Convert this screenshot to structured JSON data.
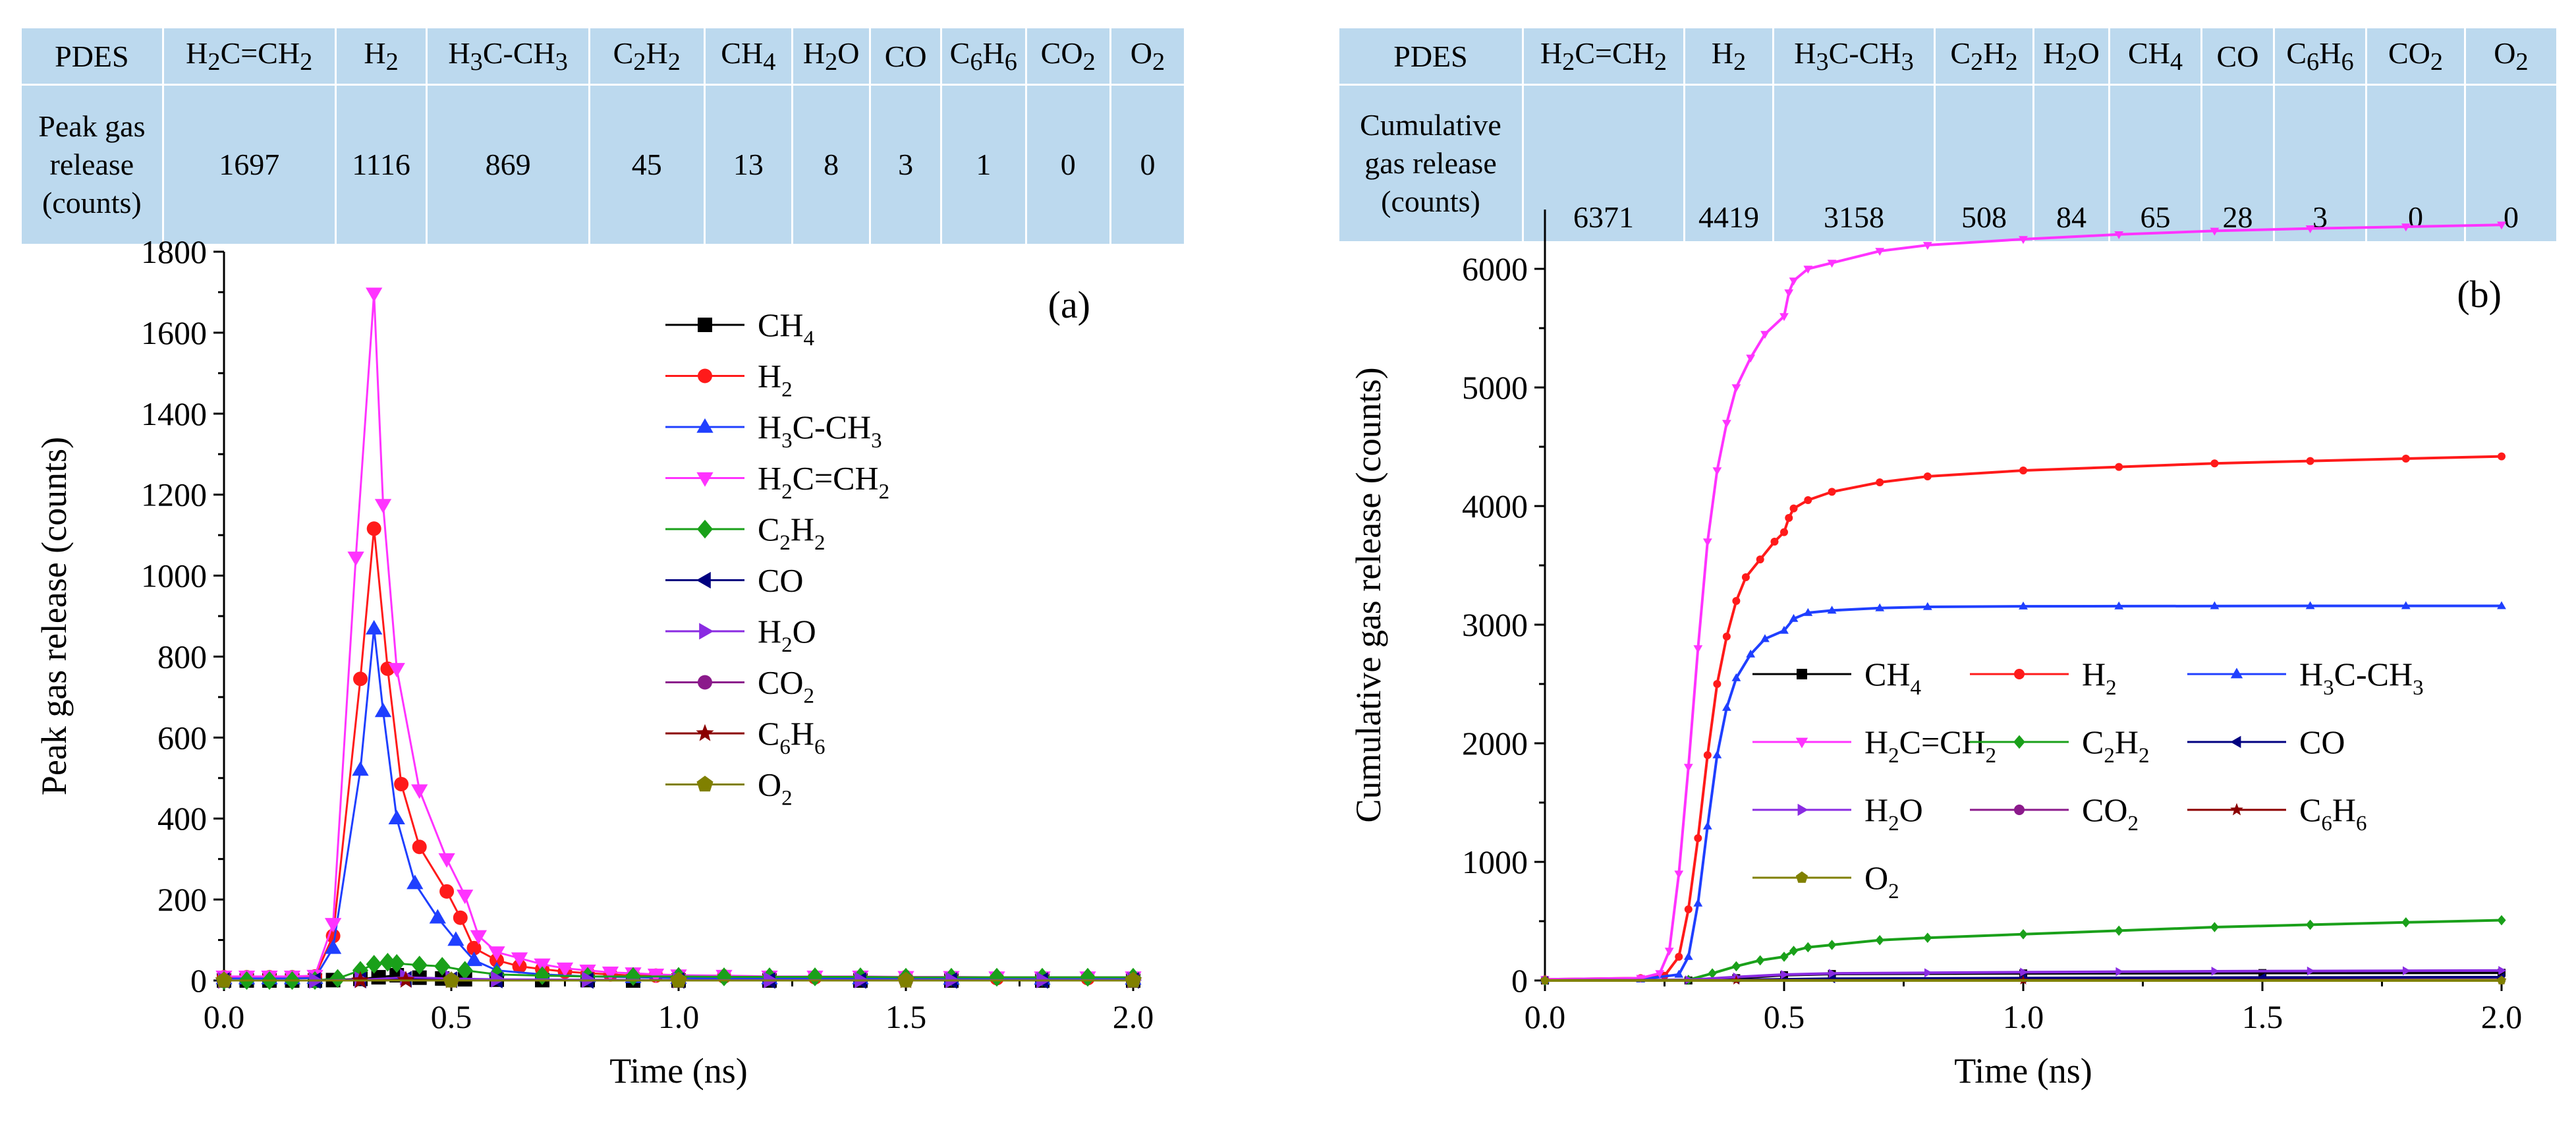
{
  "panel_a": {
    "table": {
      "header": [
        "PDES",
        "H<sub>2</sub>C=CH<sub>2</sub>",
        "H<sub>2</sub>",
        "H<sub>3</sub>C-CH<sub>3</sub>",
        "C<sub>2</sub>H<sub>2</sub>",
        "CH<sub>4</sub>",
        "H<sub>2</sub>O",
        "CO",
        "C<sub>6</sub>H<sub>6</sub>",
        "CO<sub>2</sub>",
        "O<sub>2</sub>"
      ],
      "row_label": "Peak gas<br>release<br>(counts)",
      "values": [
        "1697",
        "1116",
        "869",
        "45",
        "13",
        "8",
        "3",
        "1",
        "0",
        "0"
      ]
    }
  },
  "panel_b": {
    "table": {
      "header": [
        "PDES",
        "H<sub>2</sub>C=CH<sub>2</sub>",
        "H<sub>2</sub>",
        "H<sub>3</sub>C-CH<sub>3</sub>",
        "C<sub>2</sub>H<sub>2</sub>",
        "H<sub>2</sub>O",
        "CH<sub>4</sub>",
        "CO",
        "C<sub>6</sub>H<sub>6</sub>",
        "CO<sub>2</sub>",
        "O<sub>2</sub>"
      ],
      "row_label": "Cumulative<br>gas release<br>(counts)",
      "values": [
        "6371",
        "4419",
        "3158",
        "508",
        "84",
        "65",
        "28",
        "3",
        "0",
        "0"
      ]
    }
  },
  "chart_data": [
    {
      "type": "line",
      "panel_label": "(a)",
      "title": "",
      "xlabel": "Time (ns)",
      "ylabel": "Peak gas release (counts)",
      "xlim": [
        0,
        2.0
      ],
      "ylim": [
        0,
        1800
      ],
      "xticks": [
        "0.0",
        "0.5",
        "1.0",
        "1.5",
        "2.0"
      ],
      "yticks": [
        "0",
        "200",
        "400",
        "600",
        "800",
        "1000",
        "1200",
        "1400",
        "1600",
        "1800"
      ],
      "legend_position": "top-right",
      "series": [
        {
          "name": "CH<sub>4</sub>",
          "color": "#000000",
          "marker": "square",
          "x": [
            0.0,
            0.05,
            0.1,
            0.15,
            0.2,
            0.24,
            0.3,
            0.34,
            0.38,
            0.43,
            0.48,
            0.53,
            0.6,
            0.7,
            0.8,
            0.9,
            1.0,
            1.2,
            1.4,
            1.6,
            1.8,
            2.0
          ],
          "y": [
            0,
            0,
            0,
            0,
            0,
            1,
            4,
            8,
            13,
            7,
            5,
            3,
            2,
            1,
            1,
            0,
            0,
            0,
            0,
            0,
            0,
            0
          ]
        },
        {
          "name": "H<sub>2</sub>",
          "color": "#ff1a1a",
          "marker": "circle",
          "x": [
            0.0,
            0.05,
            0.1,
            0.15,
            0.2,
            0.24,
            0.3,
            0.33,
            0.36,
            0.39,
            0.43,
            0.49,
            0.52,
            0.55,
            0.6,
            0.65,
            0.7,
            0.75,
            0.8,
            0.85,
            0.9,
            0.95,
            1.0,
            1.1,
            1.2,
            1.3,
            1.4,
            1.5,
            1.6,
            1.7,
            1.8,
            1.9,
            2.0
          ],
          "y": [
            8,
            8,
            8,
            8,
            10,
            110,
            745,
            1116,
            770,
            485,
            330,
            220,
            155,
            80,
            50,
            35,
            28,
            22,
            18,
            15,
            12,
            12,
            10,
            10,
            8,
            8,
            8,
            8,
            6,
            6,
            6,
            6,
            6
          ]
        },
        {
          "name": "H<sub>3</sub>C-CH<sub>3</sub>",
          "color": "#1f3fff",
          "marker": "triangle-up",
          "x": [
            0.0,
            0.05,
            0.1,
            0.15,
            0.2,
            0.24,
            0.3,
            0.33,
            0.35,
            0.38,
            0.42,
            0.47,
            0.51,
            0.55,
            0.6,
            0.7,
            0.8,
            0.9,
            1.0,
            1.2,
            1.4,
            1.6,
            1.8,
            2.0
          ],
          "y": [
            5,
            5,
            5,
            5,
            6,
            80,
            520,
            869,
            665,
            400,
            240,
            155,
            100,
            50,
            25,
            15,
            10,
            8,
            6,
            5,
            5,
            4,
            4,
            4
          ]
        },
        {
          "name": "H<sub>2</sub>C=CH<sub>2</sub>",
          "color": "#ff33ff",
          "marker": "triangle-down",
          "x": [
            0.0,
            0.05,
            0.1,
            0.15,
            0.2,
            0.24,
            0.29,
            0.33,
            0.35,
            0.38,
            0.43,
            0.49,
            0.53,
            0.56,
            0.6,
            0.65,
            0.7,
            0.75,
            0.8,
            0.85,
            0.9,
            0.95,
            1.0,
            1.1,
            1.2,
            1.3,
            1.4,
            1.5,
            1.6,
            1.7,
            1.8,
            1.9,
            2.0
          ],
          "y": [
            10,
            10,
            10,
            10,
            12,
            140,
            1045,
            1697,
            1175,
            770,
            470,
            300,
            210,
            110,
            70,
            55,
            40,
            30,
            25,
            20,
            18,
            15,
            13,
            12,
            10,
            10,
            10,
            9,
            9,
            8,
            8,
            8,
            8
          ]
        },
        {
          "name": "C<sub>2</sub>H<sub>2</sub>",
          "color": "#1aa01a",
          "marker": "diamond",
          "x": [
            0.0,
            0.05,
            0.1,
            0.15,
            0.2,
            0.25,
            0.3,
            0.33,
            0.36,
            0.38,
            0.43,
            0.48,
            0.53,
            0.6,
            0.7,
            0.8,
            0.9,
            1.0,
            1.1,
            1.2,
            1.3,
            1.4,
            1.5,
            1.6,
            1.7,
            1.8,
            1.9,
            2.0
          ],
          "y": [
            0,
            0,
            0,
            0,
            0,
            5,
            25,
            40,
            45,
            42,
            38,
            35,
            25,
            15,
            12,
            10,
            10,
            10,
            9,
            9,
            9,
            9,
            8,
            8,
            8,
            8,
            8,
            8
          ]
        },
        {
          "name": "CO",
          "color": "#000080",
          "marker": "triangle-left",
          "x": [
            0.0,
            0.2,
            0.3,
            0.4,
            0.5,
            0.6,
            0.8,
            1.0,
            1.2,
            1.4,
            1.6,
            1.8,
            2.0
          ],
          "y": [
            0,
            0,
            1,
            3,
            2,
            1,
            0,
            0,
            0,
            0,
            0,
            0,
            0
          ]
        },
        {
          "name": "H<sub>2</sub>O",
          "color": "#8a2be2",
          "marker": "triangle-right",
          "x": [
            0.0,
            0.2,
            0.3,
            0.4,
            0.5,
            0.6,
            0.8,
            1.0,
            1.2,
            1.4,
            1.6,
            1.8,
            2.0
          ],
          "y": [
            0,
            0,
            2,
            8,
            5,
            3,
            2,
            1,
            1,
            1,
            1,
            1,
            1
          ]
        },
        {
          "name": "CO<sub>2</sub>",
          "color": "#8b1a8b",
          "marker": "circle",
          "x": [
            0.0,
            0.5,
            1.0,
            1.5,
            2.0
          ],
          "y": [
            0,
            0,
            0,
            0,
            0
          ]
        },
        {
          "name": "C<sub>6</sub>H<sub>6</sub>",
          "color": "#8b0000",
          "marker": "star",
          "x": [
            0.0,
            0.3,
            0.4,
            0.5,
            1.0,
            1.5,
            2.0
          ],
          "y": [
            0,
            0,
            1,
            0,
            0,
            0,
            0
          ]
        },
        {
          "name": "O<sub>2</sub>",
          "color": "#808000",
          "marker": "pentagon",
          "x": [
            0.0,
            0.5,
            1.0,
            1.5,
            2.0
          ],
          "y": [
            0,
            0,
            0,
            0,
            0
          ]
        }
      ]
    },
    {
      "type": "line",
      "panel_label": "(b)",
      "title": "",
      "xlabel": "Time (ns)",
      "ylabel": "Cumulative gas release (counts)",
      "xlim": [
        0,
        2.0
      ],
      "ylim": [
        0,
        6500
      ],
      "xticks": [
        "0.0",
        "0.5",
        "1.0",
        "1.5",
        "2.0"
      ],
      "yticks": [
        "0",
        "1000",
        "2000",
        "3000",
        "4000",
        "5000",
        "6000"
      ],
      "legend_position": "center-right",
      "series": [
        {
          "name": "CH<sub>4</sub>",
          "color": "#000000",
          "marker": "square",
          "x": [
            0.0,
            0.3,
            0.4,
            0.5,
            0.6,
            1.0,
            1.5,
            2.0
          ],
          "y": [
            0,
            0,
            20,
            45,
            55,
            60,
            63,
            65
          ]
        },
        {
          "name": "H<sub>2</sub>",
          "color": "#ff1a1a",
          "marker": "circle",
          "x": [
            0.0,
            0.2,
            0.25,
            0.28,
            0.3,
            0.32,
            0.34,
            0.36,
            0.38,
            0.4,
            0.42,
            0.45,
            0.48,
            0.5,
            0.51,
            0.52,
            0.55,
            0.6,
            0.7,
            0.8,
            1.0,
            1.2,
            1.4,
            1.6,
            1.8,
            2.0
          ],
          "y": [
            10,
            20,
            40,
            200,
            600,
            1200,
            1900,
            2500,
            2900,
            3200,
            3400,
            3550,
            3700,
            3780,
            3900,
            3980,
            4050,
            4120,
            4200,
            4250,
            4300,
            4330,
            4360,
            4380,
            4400,
            4419
          ]
        },
        {
          "name": "H<sub>3</sub>C-CH<sub>3</sub>",
          "color": "#1f3fff",
          "marker": "triangle-up",
          "x": [
            0.0,
            0.2,
            0.28,
            0.3,
            0.32,
            0.34,
            0.36,
            0.38,
            0.4,
            0.43,
            0.46,
            0.5,
            0.52,
            0.55,
            0.6,
            0.7,
            0.8,
            1.0,
            1.2,
            1.4,
            1.6,
            1.8,
            2.0
          ],
          "y": [
            5,
            10,
            50,
            200,
            650,
            1300,
            1900,
            2300,
            2550,
            2750,
            2880,
            2950,
            3050,
            3100,
            3120,
            3140,
            3150,
            3155,
            3156,
            3157,
            3158,
            3158,
            3158
          ]
        },
        {
          "name": "H<sub>2</sub>C=CH<sub>2</sub>",
          "color": "#ff33ff",
          "marker": "triangle-down",
          "x": [
            0.0,
            0.2,
            0.24,
            0.26,
            0.28,
            0.3,
            0.32,
            0.34,
            0.36,
            0.38,
            0.4,
            0.43,
            0.46,
            0.5,
            0.51,
            0.52,
            0.55,
            0.6,
            0.7,
            0.8,
            1.0,
            1.2,
            1.4,
            1.6,
            1.8,
            2.0
          ],
          "y": [
            10,
            20,
            60,
            250,
            900,
            1800,
            2800,
            3700,
            4300,
            4700,
            5000,
            5250,
            5450,
            5600,
            5800,
            5900,
            6000,
            6050,
            6150,
            6200,
            6250,
            6290,
            6320,
            6340,
            6355,
            6371
          ]
        },
        {
          "name": "C<sub>2</sub>H<sub>2</sub>",
          "color": "#1aa01a",
          "marker": "diamond",
          "x": [
            0.0,
            0.3,
            0.35,
            0.4,
            0.45,
            0.5,
            0.52,
            0.55,
            0.6,
            0.7,
            0.8,
            1.0,
            1.2,
            1.4,
            1.6,
            1.8,
            2.0
          ],
          "y": [
            0,
            5,
            60,
            120,
            170,
            200,
            250,
            280,
            300,
            340,
            360,
            390,
            420,
            450,
            470,
            490,
            508
          ]
        },
        {
          "name": "CO",
          "color": "#000080",
          "marker": "triangle-left",
          "x": [
            0.0,
            0.4,
            0.6,
            1.0,
            1.5,
            2.0
          ],
          "y": [
            0,
            5,
            15,
            20,
            25,
            28
          ]
        },
        {
          "name": "H<sub>2</sub>O",
          "color": "#8a2be2",
          "marker": "triangle-right",
          "x": [
            0.0,
            0.3,
            0.4,
            0.5,
            0.6,
            0.8,
            1.0,
            1.2,
            1.4,
            1.6,
            1.8,
            2.0
          ],
          "y": [
            0,
            5,
            30,
            50,
            60,
            65,
            70,
            74,
            78,
            80,
            82,
            84
          ]
        },
        {
          "name": "CO<sub>2</sub>",
          "color": "#8b1a8b",
          "marker": "circle",
          "x": [
            0.0,
            2.0
          ],
          "y": [
            0,
            0
          ]
        },
        {
          "name": "C<sub>6</sub>H<sub>6</sub>",
          "color": "#8b0000",
          "marker": "star",
          "x": [
            0.0,
            0.4,
            1.0,
            2.0
          ],
          "y": [
            0,
            1,
            2,
            3
          ]
        },
        {
          "name": "O<sub>2</sub>",
          "color": "#808000",
          "marker": "pentagon",
          "x": [
            0.0,
            2.0
          ],
          "y": [
            0,
            0
          ]
        }
      ]
    }
  ]
}
